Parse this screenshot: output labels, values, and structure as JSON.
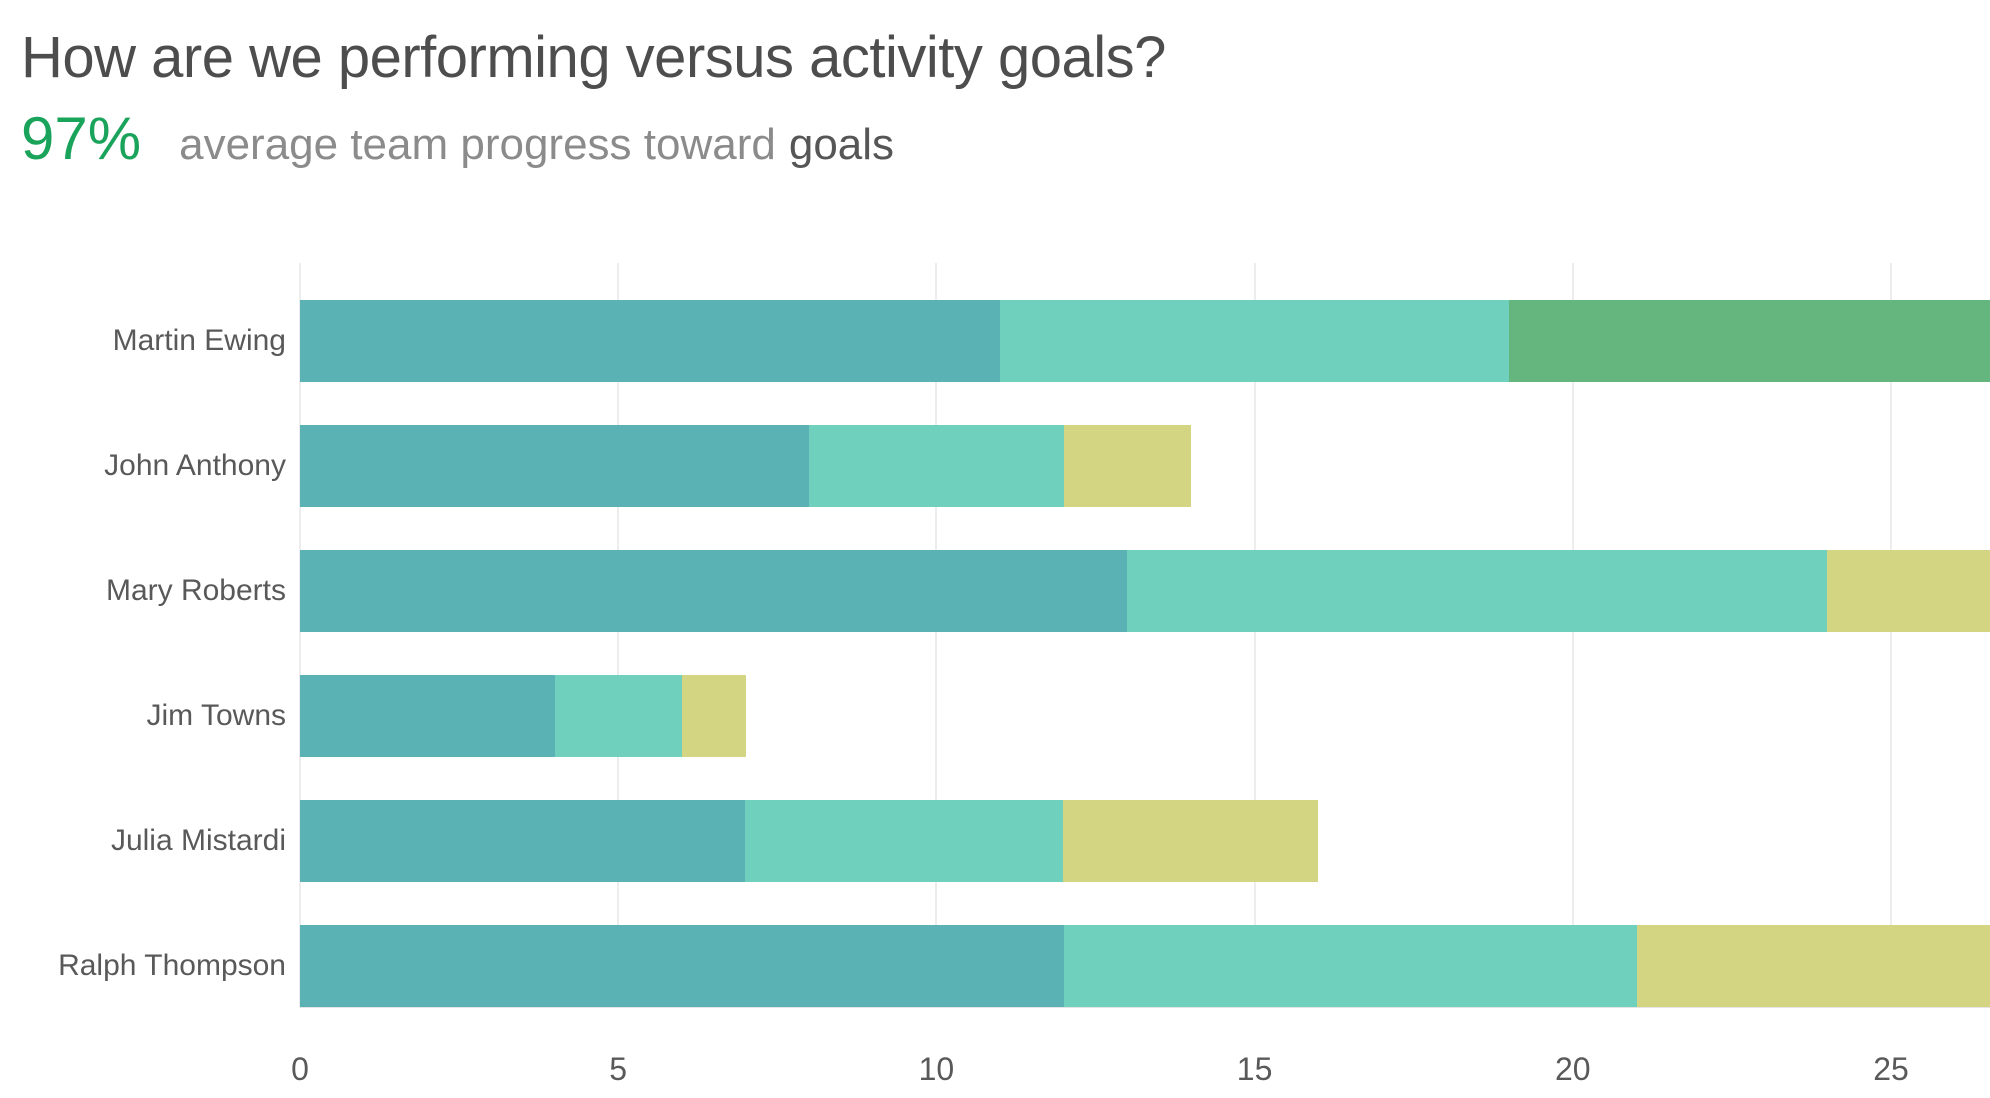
{
  "header": {
    "title": "How are we performing versus activity goals?",
    "kpi_value": "97%",
    "kpi_label": "average team progress toward",
    "kpi_label_emphasis": "goals"
  },
  "colors": {
    "title_text": "#4d4d4d",
    "kpi_green": "#1aa35a",
    "kpi_gray": "#8b8b8b",
    "kpi_dark": "#565656",
    "axis_text": "#595959",
    "gridline": "#ededed",
    "segment_teal": "#5bb2b5",
    "segment_mint": "#6fd0bd",
    "segment_green": "#65b67e",
    "segment_yellow": "#d4d583"
  },
  "chart_data": {
    "type": "bar",
    "orientation": "horizontal",
    "stacked": true,
    "title": "How are we performing versus activity goals?",
    "xlabel": "",
    "ylabel": "",
    "grid": "vertical-only",
    "legend": "none",
    "x_axis": {
      "ticks": [
        0,
        5,
        10,
        15,
        20,
        25
      ],
      "tick_labels": [
        "0",
        "5",
        "10",
        "15",
        "20",
        "25"
      ],
      "visible_max": 26.6
    },
    "categories": [
      "Martin Ewing",
      "John Anthony",
      "Mary Roberts",
      "Jim Towns",
      "Julia Mistardi",
      "Ralph Thompson"
    ],
    "bars": [
      {
        "name": "Martin Ewing",
        "segments": [
          {
            "value": 11,
            "color": "#5bb2b5",
            "clipped": false
          },
          {
            "value": 8,
            "color": "#6fd0bd",
            "clipped": false
          },
          {
            "value": 7.6,
            "color": "#65b67e",
            "clipped": true
          }
        ]
      },
      {
        "name": "John Anthony",
        "segments": [
          {
            "value": 8,
            "color": "#5bb2b5",
            "clipped": false
          },
          {
            "value": 4,
            "color": "#6fd0bd",
            "clipped": false
          },
          {
            "value": 2,
            "color": "#d4d583",
            "clipped": false
          }
        ]
      },
      {
        "name": "Mary Roberts",
        "segments": [
          {
            "value": 13,
            "color": "#5bb2b5",
            "clipped": false
          },
          {
            "value": 11,
            "color": "#6fd0bd",
            "clipped": false
          },
          {
            "value": 2.6,
            "color": "#d4d583",
            "clipped": true
          }
        ]
      },
      {
        "name": "Jim Towns",
        "segments": [
          {
            "value": 4,
            "color": "#5bb2b5",
            "clipped": false
          },
          {
            "value": 2,
            "color": "#6fd0bd",
            "clipped": false
          },
          {
            "value": 1,
            "color": "#d4d583",
            "clipped": false
          }
        ]
      },
      {
        "name": "Julia Mistardi",
        "segments": [
          {
            "value": 7,
            "color": "#5bb2b5",
            "clipped": false
          },
          {
            "value": 5,
            "color": "#6fd0bd",
            "clipped": false
          },
          {
            "value": 4,
            "color": "#d4d583",
            "clipped": false
          }
        ]
      },
      {
        "name": "Ralph Thompson",
        "segments": [
          {
            "value": 12,
            "color": "#5bb2b5",
            "clipped": false
          },
          {
            "value": 9,
            "color": "#6fd0bd",
            "clipped": false
          },
          {
            "value": 5.6,
            "color": "#d4d583",
            "clipped": true
          }
        ]
      }
    ]
  }
}
